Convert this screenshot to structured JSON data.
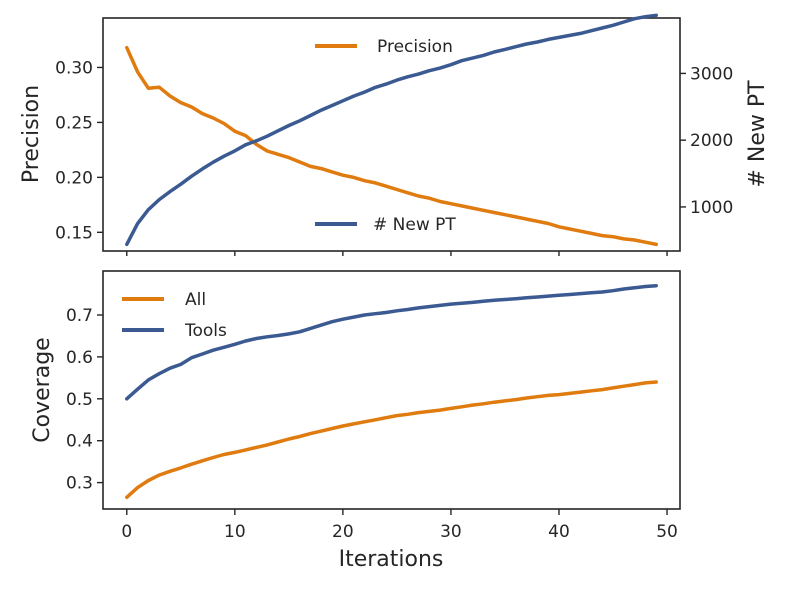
{
  "colors": {
    "orange": "#e07b0f",
    "blue": "#3b5a92",
    "axis": "#262626"
  },
  "chart_data": [
    {
      "type": "line",
      "dual_axis": true,
      "xlim": [
        -2.2,
        51.2
      ],
      "ylabel": "Precision",
      "ylim": [
        0.133,
        0.345
      ],
      "yticks": [
        0.15,
        0.2,
        0.25,
        0.3
      ],
      "yticklabels": [
        "0.15",
        "0.20",
        "0.25",
        "0.30"
      ],
      "y2label": "# New PT",
      "y2lim": [
        340,
        3830
      ],
      "y2ticks": [
        1000,
        2000,
        3000
      ],
      "y2ticklabels": [
        "1000",
        "2000",
        "3000"
      ],
      "series": [
        {
          "name": "Precision",
          "axis": "left",
          "color": "#e07b0f",
          "x": [
            0,
            1,
            2,
            3,
            4,
            5,
            6,
            7,
            8,
            9,
            10,
            11,
            12,
            13,
            14,
            15,
            16,
            17,
            18,
            19,
            20,
            21,
            22,
            23,
            24,
            25,
            26,
            27,
            28,
            29,
            30,
            31,
            32,
            33,
            34,
            35,
            36,
            37,
            38,
            39,
            40,
            41,
            42,
            43,
            44,
            45,
            46,
            47,
            48,
            49
          ],
          "values": [
            0.318,
            0.296,
            0.281,
            0.282,
            0.274,
            0.268,
            0.264,
            0.258,
            0.254,
            0.249,
            0.242,
            0.238,
            0.23,
            0.224,
            0.221,
            0.218,
            0.214,
            0.21,
            0.208,
            0.205,
            0.202,
            0.2,
            0.197,
            0.195,
            0.192,
            0.189,
            0.186,
            0.183,
            0.181,
            0.178,
            0.176,
            0.174,
            0.172,
            0.17,
            0.168,
            0.166,
            0.164,
            0.162,
            0.16,
            0.158,
            0.155,
            0.153,
            0.151,
            0.149,
            0.147,
            0.146,
            0.144,
            0.143,
            0.141,
            0.139
          ]
        },
        {
          "name": "# New PT",
          "axis": "right",
          "color": "#3b5a92",
          "x": [
            0,
            1,
            2,
            3,
            4,
            5,
            6,
            7,
            8,
            9,
            10,
            11,
            12,
            13,
            14,
            15,
            16,
            17,
            18,
            19,
            20,
            21,
            22,
            23,
            24,
            25,
            26,
            27,
            28,
            29,
            30,
            31,
            32,
            33,
            34,
            35,
            36,
            37,
            38,
            39,
            40,
            41,
            42,
            43,
            44,
            45,
            46,
            47,
            48,
            49
          ],
          "values": [
            440,
            750,
            960,
            1110,
            1230,
            1340,
            1460,
            1570,
            1670,
            1760,
            1840,
            1930,
            1990,
            2060,
            2140,
            2220,
            2290,
            2370,
            2450,
            2520,
            2590,
            2660,
            2720,
            2790,
            2840,
            2900,
            2950,
            2990,
            3040,
            3080,
            3130,
            3190,
            3230,
            3270,
            3320,
            3360,
            3400,
            3440,
            3470,
            3510,
            3540,
            3570,
            3600,
            3640,
            3680,
            3720,
            3770,
            3820,
            3850,
            3870
          ]
        }
      ],
      "legends": [
        {
          "label": "Precision",
          "color": "#e07b0f",
          "placement": "upper-center"
        },
        {
          "label": "# New PT",
          "color": "#3b5a92",
          "placement": "lower-center"
        }
      ]
    },
    {
      "type": "line",
      "xlabel": "Iterations",
      "xlim": [
        -2.2,
        51.2
      ],
      "xticks": [
        0,
        10,
        20,
        30,
        40,
        50
      ],
      "xticklabels": [
        "0",
        "10",
        "20",
        "30",
        "40",
        "50"
      ],
      "ylabel": "Coverage",
      "ylim": [
        0.237,
        0.805
      ],
      "yticks": [
        0.3,
        0.4,
        0.5,
        0.6,
        0.7
      ],
      "yticklabels": [
        "0.3",
        "0.4",
        "0.5",
        "0.6",
        "0.7"
      ],
      "series": [
        {
          "name": "All",
          "color": "#e07b0f",
          "x": [
            0,
            1,
            2,
            3,
            4,
            5,
            6,
            7,
            8,
            9,
            10,
            11,
            12,
            13,
            14,
            15,
            16,
            17,
            18,
            19,
            20,
            21,
            22,
            23,
            24,
            25,
            26,
            27,
            28,
            29,
            30,
            31,
            32,
            33,
            34,
            35,
            36,
            37,
            38,
            39,
            40,
            41,
            42,
            43,
            44,
            45,
            46,
            47,
            48,
            49
          ],
          "values": [
            0.265,
            0.288,
            0.305,
            0.318,
            0.327,
            0.335,
            0.344,
            0.352,
            0.36,
            0.367,
            0.372,
            0.378,
            0.384,
            0.39,
            0.397,
            0.404,
            0.41,
            0.417,
            0.423,
            0.429,
            0.435,
            0.44,
            0.445,
            0.45,
            0.455,
            0.46,
            0.463,
            0.467,
            0.47,
            0.473,
            0.477,
            0.481,
            0.485,
            0.488,
            0.492,
            0.495,
            0.498,
            0.502,
            0.505,
            0.508,
            0.51,
            0.513,
            0.516,
            0.519,
            0.522,
            0.526,
            0.53,
            0.534,
            0.538,
            0.54
          ]
        },
        {
          "name": "Tools",
          "color": "#3b5a92",
          "x": [
            0,
            1,
            2,
            3,
            4,
            5,
            6,
            7,
            8,
            9,
            10,
            11,
            12,
            13,
            14,
            15,
            16,
            17,
            18,
            19,
            20,
            21,
            22,
            23,
            24,
            25,
            26,
            27,
            28,
            29,
            30,
            31,
            32,
            33,
            34,
            35,
            36,
            37,
            38,
            39,
            40,
            41,
            42,
            43,
            44,
            45,
            46,
            47,
            48,
            49
          ],
          "values": [
            0.5,
            0.523,
            0.545,
            0.56,
            0.573,
            0.582,
            0.598,
            0.607,
            0.616,
            0.623,
            0.63,
            0.638,
            0.644,
            0.648,
            0.651,
            0.655,
            0.66,
            0.668,
            0.676,
            0.684,
            0.69,
            0.695,
            0.7,
            0.703,
            0.706,
            0.71,
            0.713,
            0.717,
            0.72,
            0.723,
            0.726,
            0.728,
            0.73,
            0.733,
            0.735,
            0.737,
            0.739,
            0.741,
            0.743,
            0.745,
            0.747,
            0.749,
            0.751,
            0.753,
            0.755,
            0.758,
            0.762,
            0.765,
            0.768,
            0.77
          ]
        }
      ],
      "legend": {
        "placement": "upper-left",
        "entries": [
          {
            "label": "All",
            "color": "#e07b0f"
          },
          {
            "label": "Tools",
            "color": "#3b5a92"
          }
        ]
      }
    }
  ]
}
